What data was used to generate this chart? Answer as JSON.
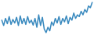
{
  "values": [
    50,
    35,
    55,
    40,
    60,
    38,
    52,
    42,
    58,
    35,
    62,
    40,
    55,
    38,
    60,
    42,
    50,
    36,
    55,
    30,
    65,
    35,
    58,
    25,
    15,
    30,
    20,
    45,
    35,
    55,
    42,
    60,
    38,
    55,
    45,
    62,
    40,
    58,
    50,
    70,
    55,
    65,
    60,
    75,
    65,
    80,
    72,
    90,
    85,
    100
  ],
  "line_color": "#3a8abf",
  "background_color": "#ffffff",
  "linewidth": 1.1
}
